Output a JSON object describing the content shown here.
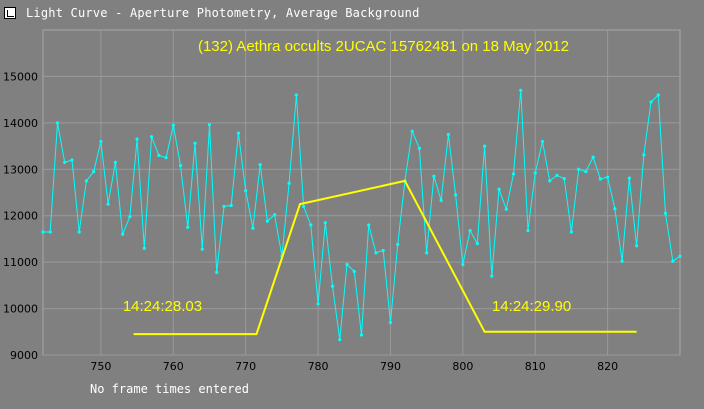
{
  "window": {
    "title": "Light Curve - Aperture Photometry, Average Background",
    "icon": "light-curve-app-icon"
  },
  "status_text": "No frame times entered",
  "colors": {
    "background": "#808080",
    "plot_background": "#808080",
    "grid": "#9a9a9a",
    "axis_text": "#000000",
    "series": "#00ffff",
    "model": "#ffff00",
    "annotation": "#ffff00"
  },
  "chart_data": {
    "type": "line",
    "title": "(132) Aethra occults 2UCAC 15762481 on 18 May 2012",
    "xlabel": "",
    "ylabel": "",
    "xlim": [
      742,
      830
    ],
    "ylim": [
      9000,
      16000
    ],
    "xticks": [
      750,
      760,
      770,
      780,
      790,
      800,
      810,
      820
    ],
    "yticks": [
      9000,
      10000,
      11000,
      12000,
      13000,
      14000,
      15000
    ],
    "grid": true,
    "series": [
      {
        "x": [
          742,
          743,
          744,
          745,
          746,
          747,
          748,
          749,
          750,
          751,
          752,
          753,
          754,
          755,
          756,
          757,
          758,
          759,
          760,
          761,
          762,
          763,
          764,
          765,
          766,
          767,
          768,
          769,
          770,
          771,
          772,
          773,
          774,
          775,
          776,
          777,
          778,
          779,
          780,
          781,
          782,
          783,
          784,
          785,
          786,
          787,
          788,
          789,
          790,
          791,
          792,
          793,
          794,
          795,
          796,
          797,
          798,
          799,
          800,
          801,
          802,
          803,
          804,
          805,
          806,
          807,
          808,
          809,
          810,
          811,
          812,
          813,
          814,
          815,
          816,
          817,
          818,
          819,
          820,
          821,
          822,
          823,
          824,
          825,
          826,
          827,
          828,
          829,
          830
        ],
        "y": [
          11650,
          11650,
          14000,
          13150,
          13200,
          11650,
          12750,
          12950,
          13600,
          12250,
          13150,
          11600,
          11980,
          13650,
          11300,
          13700,
          13300,
          13250,
          13950,
          13080,
          11750,
          13560,
          11280,
          13960,
          10780,
          12200,
          12220,
          13780,
          12540,
          11730,
          13100,
          11880,
          12020,
          11130,
          12700,
          14600,
          12200,
          11800,
          10100,
          11850,
          10480,
          9330,
          10950,
          10800,
          9430,
          11800,
          11200,
          11250,
          9700,
          11380,
          12750,
          13820,
          13450,
          11200,
          12850,
          12330,
          13750,
          12450,
          10950,
          11680,
          11400,
          13500,
          10700,
          12570,
          12140,
          12900,
          14700,
          11680,
          12920,
          13600,
          12750,
          12870,
          12800,
          11650,
          13000,
          12950,
          13260,
          12790,
          12830,
          12150,
          11020,
          12810,
          11350,
          13310,
          14450,
          14600,
          12050,
          11020,
          11130
        ],
        "marker_color": "#00ffff"
      }
    ],
    "model_curve": {
      "x": [
        754.5,
        771.5,
        777.5,
        792,
        803,
        824
      ],
      "y": [
        9450,
        9450,
        12250,
        12750,
        9500,
        9500
      ]
    },
    "annotations": [
      {
        "text": "14:24:28.03",
        "x": 758.5,
        "y": 9950
      },
      {
        "text": "14:24:29.90",
        "x": 809.5,
        "y": 9950
      }
    ]
  }
}
